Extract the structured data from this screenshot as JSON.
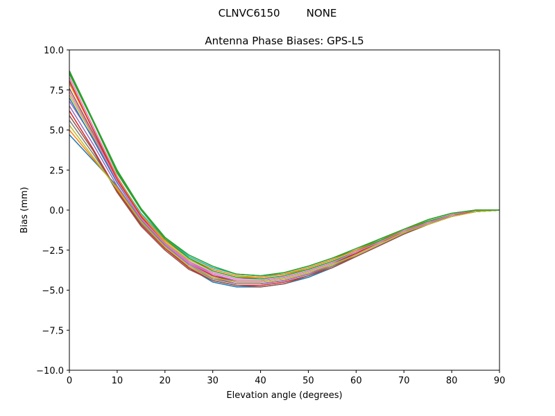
{
  "figure": {
    "suptitle": "CLNVC6150        NONE"
  },
  "chart_data": {
    "type": "line",
    "title": "Antenna Phase Biases: GPS-L5",
    "xlabel": "Elevation angle (degrees)",
    "ylabel": "Bias (mm)",
    "xlim": [
      0,
      90
    ],
    "ylim": [
      -10,
      10
    ],
    "xticks": [
      0,
      10,
      20,
      30,
      40,
      50,
      60,
      70,
      80,
      90
    ],
    "yticks": [
      -10.0,
      -7.5,
      -5.0,
      -2.5,
      0.0,
      2.5,
      5.0,
      7.5,
      10.0
    ],
    "xtick_labels": [
      "0",
      "10",
      "20",
      "30",
      "40",
      "50",
      "60",
      "70",
      "80",
      "90"
    ],
    "ytick_labels": [
      "−10.0",
      "−7.5",
      "−5.0",
      "−2.5",
      "0.0",
      "2.5",
      "5.0",
      "7.5",
      "10.0"
    ],
    "grid": false,
    "x": [
      0,
      5,
      10,
      15,
      20,
      25,
      30,
      35,
      40,
      45,
      50,
      55,
      60,
      65,
      70,
      75,
      80,
      85,
      90
    ],
    "series": [
      {
        "color": "#1f77b4",
        "values": [
          4.7,
          3.1,
          1.5,
          -0.6,
          -2.3,
          -3.6,
          -4.5,
          -4.8,
          -4.8,
          -4.6,
          -4.2,
          -3.6,
          -2.9,
          -2.2,
          -1.5,
          -0.9,
          -0.4,
          -0.1,
          0.0
        ]
      },
      {
        "color": "#ff7f0e",
        "values": [
          5.0,
          3.2,
          1.4,
          -0.7,
          -2.3,
          -3.5,
          -4.3,
          -4.6,
          -4.6,
          -4.4,
          -4.0,
          -3.5,
          -2.8,
          -2.1,
          -1.4,
          -0.9,
          -0.4,
          -0.1,
          0.0
        ]
      },
      {
        "color": "#2ca02c",
        "values": [
          8.7,
          5.6,
          2.5,
          0.1,
          -1.7,
          -2.9,
          -3.6,
          -4.0,
          -4.1,
          -3.9,
          -3.5,
          -3.0,
          -2.5,
          -1.8,
          -1.2,
          -0.6,
          -0.2,
          0.0,
          0.0
        ]
      },
      {
        "color": "#d62728",
        "values": [
          6.2,
          3.8,
          1.2,
          -0.9,
          -2.4,
          -3.6,
          -4.4,
          -4.7,
          -4.7,
          -4.5,
          -4.1,
          -3.5,
          -2.9,
          -2.2,
          -1.5,
          -0.9,
          -0.4,
          -0.1,
          0.0
        ]
      },
      {
        "color": "#9467bd",
        "values": [
          6.8,
          4.5,
          1.8,
          -0.4,
          -2.0,
          -3.2,
          -4.0,
          -4.4,
          -4.4,
          -4.2,
          -3.8,
          -3.3,
          -2.7,
          -2.0,
          -1.3,
          -0.8,
          -0.3,
          -0.1,
          0.0
        ]
      },
      {
        "color": "#8c564b",
        "values": [
          7.6,
          4.8,
          1.9,
          -0.4,
          -2.1,
          -3.3,
          -4.1,
          -4.5,
          -4.5,
          -4.3,
          -3.9,
          -3.4,
          -2.7,
          -2.0,
          -1.4,
          -0.8,
          -0.3,
          -0.1,
          0.0
        ]
      },
      {
        "color": "#e377c2",
        "values": [
          8.3,
          5.2,
          2.1,
          -0.3,
          -2.0,
          -3.2,
          -3.9,
          -4.3,
          -4.3,
          -4.1,
          -3.7,
          -3.2,
          -2.6,
          -1.9,
          -1.3,
          -0.7,
          -0.3,
          0.0,
          0.0
        ]
      },
      {
        "color": "#7f7f7f",
        "values": [
          5.6,
          3.5,
          1.3,
          -0.8,
          -2.3,
          -3.5,
          -4.3,
          -4.6,
          -4.6,
          -4.4,
          -4.0,
          -3.5,
          -2.8,
          -2.1,
          -1.4,
          -0.8,
          -0.4,
          -0.1,
          0.0
        ]
      },
      {
        "color": "#bcbd22",
        "values": [
          7.2,
          4.6,
          1.9,
          -0.4,
          -2.0,
          -3.1,
          -3.8,
          -4.2,
          -4.2,
          -4.0,
          -3.7,
          -3.2,
          -2.6,
          -1.9,
          -1.3,
          -0.7,
          -0.3,
          0.0,
          0.0
        ]
      },
      {
        "color": "#17becf",
        "values": [
          8.0,
          5.0,
          2.0,
          -0.2,
          -1.8,
          -2.9,
          -3.6,
          -4.0,
          -4.1,
          -4.0,
          -3.6,
          -3.1,
          -2.5,
          -1.9,
          -1.2,
          -0.7,
          -0.3,
          0.0,
          0.0
        ]
      },
      {
        "color": "#1f77b4",
        "values": [
          7.0,
          4.4,
          1.7,
          -0.5,
          -2.1,
          -3.3,
          -4.1,
          -4.4,
          -4.4,
          -4.2,
          -3.8,
          -3.3,
          -2.7,
          -2.0,
          -1.4,
          -0.8,
          -0.3,
          -0.1,
          0.0
        ]
      },
      {
        "color": "#ff7f0e",
        "values": [
          7.9,
          5.0,
          2.0,
          -0.3,
          -1.9,
          -3.0,
          -3.7,
          -4.1,
          -4.2,
          -4.0,
          -3.6,
          -3.1,
          -2.5,
          -1.9,
          -1.2,
          -0.7,
          -0.3,
          0.0,
          0.0
        ]
      },
      {
        "color": "#2ca02c",
        "values": [
          8.5,
          5.5,
          2.3,
          0.0,
          -1.8,
          -3.0,
          -3.8,
          -4.2,
          -4.3,
          -4.1,
          -3.7,
          -3.2,
          -2.6,
          -1.9,
          -1.3,
          -0.7,
          -0.3,
          0.0,
          0.0
        ]
      },
      {
        "color": "#d62728",
        "values": [
          8.1,
          5.0,
          1.9,
          -0.4,
          -2.1,
          -3.3,
          -4.1,
          -4.5,
          -4.5,
          -4.3,
          -3.9,
          -3.4,
          -2.7,
          -2.0,
          -1.4,
          -0.8,
          -0.3,
          -0.1,
          0.0
        ]
      },
      {
        "color": "#9467bd",
        "values": [
          6.5,
          4.1,
          1.5,
          -0.6,
          -2.2,
          -3.4,
          -4.2,
          -4.6,
          -4.6,
          -4.4,
          -4.0,
          -3.4,
          -2.8,
          -2.1,
          -1.4,
          -0.8,
          -0.4,
          -0.1,
          0.0
        ]
      },
      {
        "color": "#e377c2",
        "values": [
          7.4,
          4.7,
          1.8,
          -0.5,
          -2.1,
          -3.3,
          -4.0,
          -4.4,
          -4.4,
          -4.2,
          -3.8,
          -3.3,
          -2.6,
          -2.0,
          -1.3,
          -0.8,
          -0.3,
          0.0,
          0.0
        ]
      },
      {
        "color": "#8c564b",
        "values": [
          5.9,
          3.7,
          1.1,
          -1.0,
          -2.5,
          -3.7,
          -4.4,
          -4.7,
          -4.8,
          -4.6,
          -4.1,
          -3.6,
          -2.9,
          -2.2,
          -1.5,
          -0.9,
          -0.4,
          -0.1,
          0.0
        ]
      },
      {
        "color": "#bcbd22",
        "values": [
          5.3,
          3.3,
          1.3,
          -0.7,
          -2.3,
          -3.5,
          -4.2,
          -4.5,
          -4.5,
          -4.3,
          -3.9,
          -3.4,
          -2.8,
          -2.1,
          -1.4,
          -0.9,
          -0.4,
          -0.1,
          0.0
        ]
      },
      {
        "color": "#2ca02c",
        "values": [
          8.6,
          5.5,
          2.4,
          0.1,
          -1.7,
          -2.8,
          -3.5,
          -4.0,
          -4.1,
          -3.9,
          -3.5,
          -3.0,
          -2.4,
          -1.8,
          -1.2,
          -0.6,
          -0.2,
          0.0,
          0.0
        ]
      }
    ]
  }
}
